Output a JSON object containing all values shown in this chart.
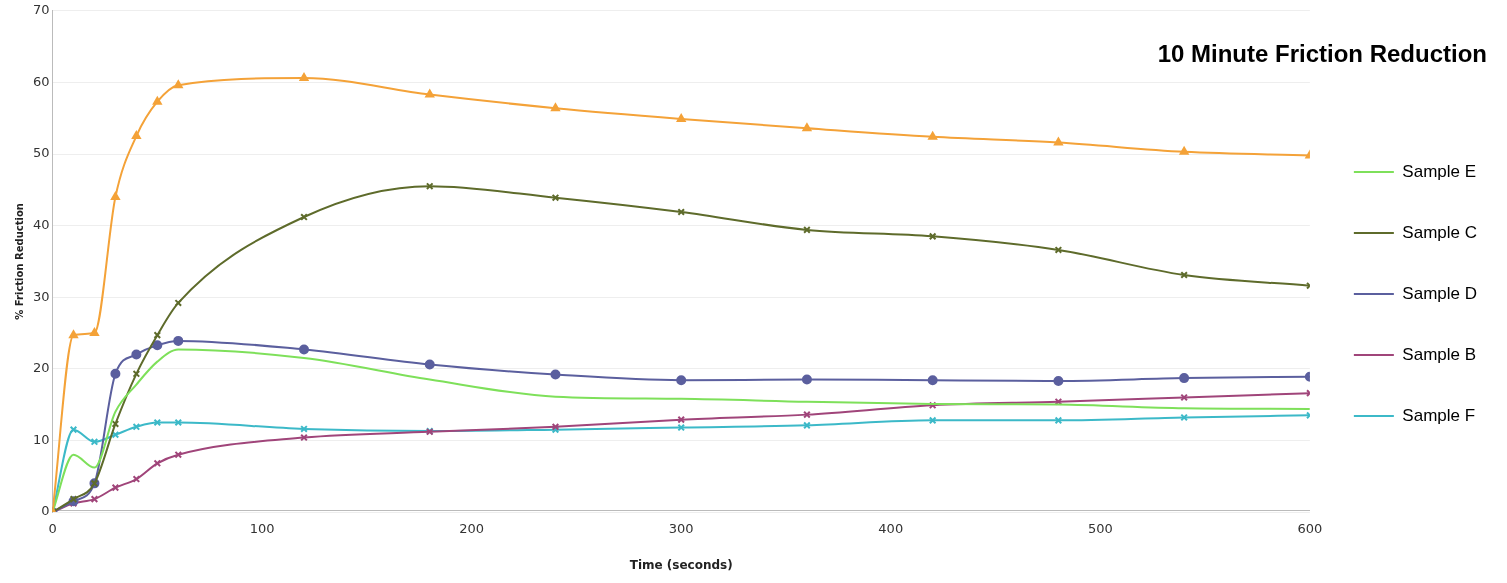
{
  "chart_data": {
    "type": "line",
    "title": "10 Minute Friction Reduction",
    "xlabel": "Time (seconds)",
    "ylabel": "% Friction Reduction",
    "x": [
      0,
      10,
      20,
      30,
      40,
      50,
      60,
      120,
      180,
      240,
      300,
      360,
      420,
      480,
      540,
      600
    ],
    "series": [
      {
        "color": "#f4a238",
        "marker": "triangle",
        "values": [
          0,
          24.7,
          25,
          44,
          52.5,
          57.3,
          59.6,
          60.6,
          58.3,
          56.4,
          54.9,
          53.6,
          52.4,
          51.6,
          50.3,
          49.8
        ]
      },
      {
        "name": "Sample E",
        "color": "#7ee05a",
        "marker": "none",
        "values": [
          0,
          8,
          6.2,
          14,
          17.8,
          21,
          22.7,
          21.5,
          18.5,
          16.1,
          15.8,
          15.4,
          15.1,
          15,
          14.5,
          14.4
        ]
      },
      {
        "name": "Sample C",
        "color": "#5e6b2b",
        "marker": "cross",
        "values": [
          0,
          1.8,
          4,
          12.3,
          19.3,
          24.7,
          29.2,
          41.2,
          45.5,
          43.9,
          41.9,
          39.4,
          38.5,
          36.6,
          33.1,
          31.6
        ]
      },
      {
        "name": "Sample D",
        "color": "#5b5f9e",
        "marker": "circle",
        "values": [
          0,
          1.5,
          4,
          19.3,
          22,
          23.3,
          23.9,
          22.7,
          20.6,
          19.2,
          18.4,
          18.5,
          18.4,
          18.3,
          18.7,
          18.9
        ]
      },
      {
        "name": "Sample B",
        "color": "#a0457a",
        "marker": "cross",
        "values": [
          0,
          1.2,
          1.8,
          3.4,
          4.6,
          6.8,
          8,
          10.4,
          11.2,
          11.9,
          12.9,
          13.6,
          14.9,
          15.4,
          16,
          16.6
        ]
      },
      {
        "name": "Sample F",
        "color": "#3cb9c8",
        "marker": "cross",
        "values": [
          0,
          11.5,
          9.8,
          10.8,
          11.9,
          12.5,
          12.5,
          11.6,
          11.3,
          11.5,
          11.8,
          12.1,
          12.8,
          12.8,
          13.2,
          13.5
        ]
      }
    ],
    "xlim": [
      0,
      600
    ],
    "xticks": [
      0,
      100,
      200,
      300,
      400,
      500,
      600
    ],
    "ylim": [
      0,
      70
    ],
    "yticks": [
      0,
      10,
      20,
      30,
      40,
      50,
      60,
      70
    ],
    "grid": "y",
    "legend": "right"
  }
}
